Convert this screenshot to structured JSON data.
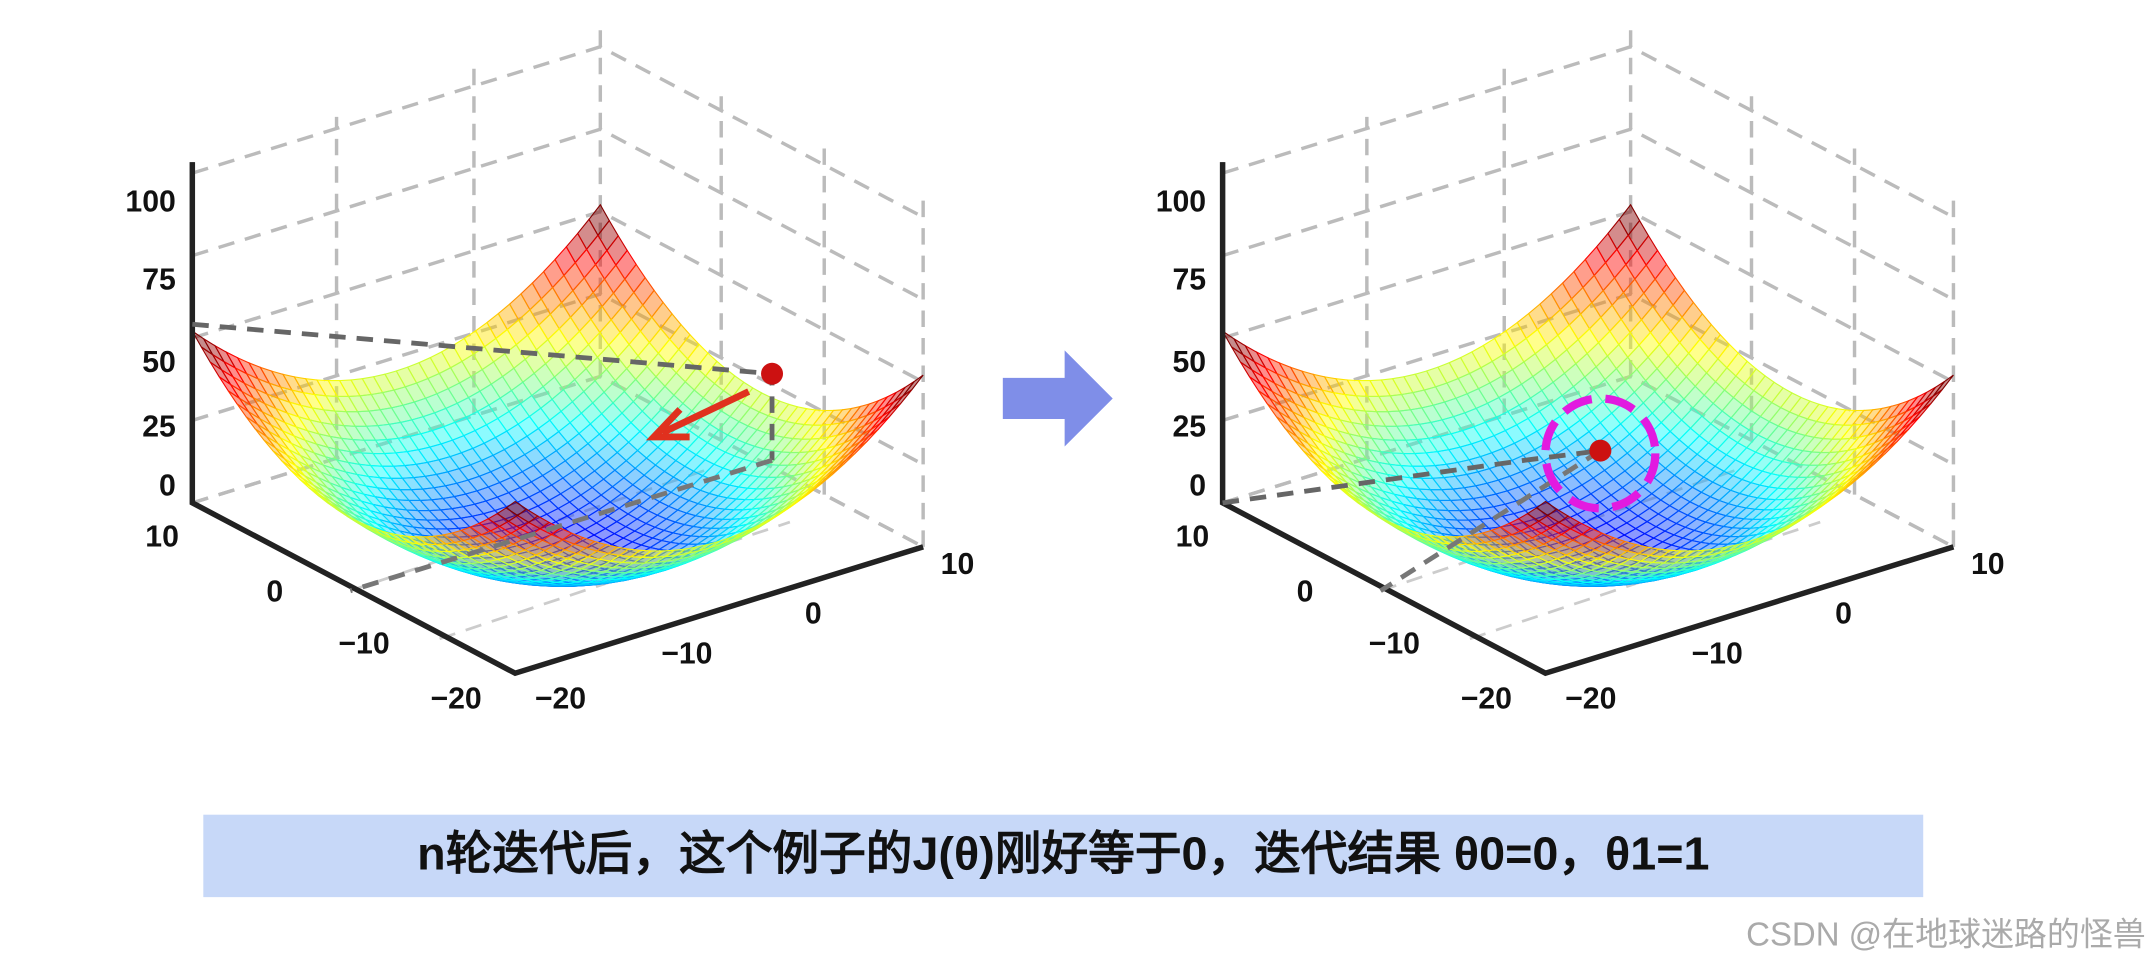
{
  "panels": [
    {
      "z_ticks": [
        "100",
        "75",
        "50",
        "25",
        "0"
      ],
      "left_axis_ticks": [
        "10",
        "0",
        "−10",
        "−20"
      ],
      "right_axis_ticks": [
        "−20",
        "−10",
        "0",
        "10"
      ]
    },
    {
      "z_ticks": [
        "100",
        "75",
        "50",
        "25",
        "0"
      ],
      "left_axis_ticks": [
        "10",
        "0",
        "−10",
        "−20"
      ],
      "right_axis_ticks": [
        "−20",
        "−10",
        "0",
        "10"
      ]
    }
  ],
  "caption": "n轮迭代后，这个例子的J(θ)刚好等于0，迭代结果 θ0=0，θ1=1",
  "watermark": "CSDN @在地球迷路的怪兽"
}
